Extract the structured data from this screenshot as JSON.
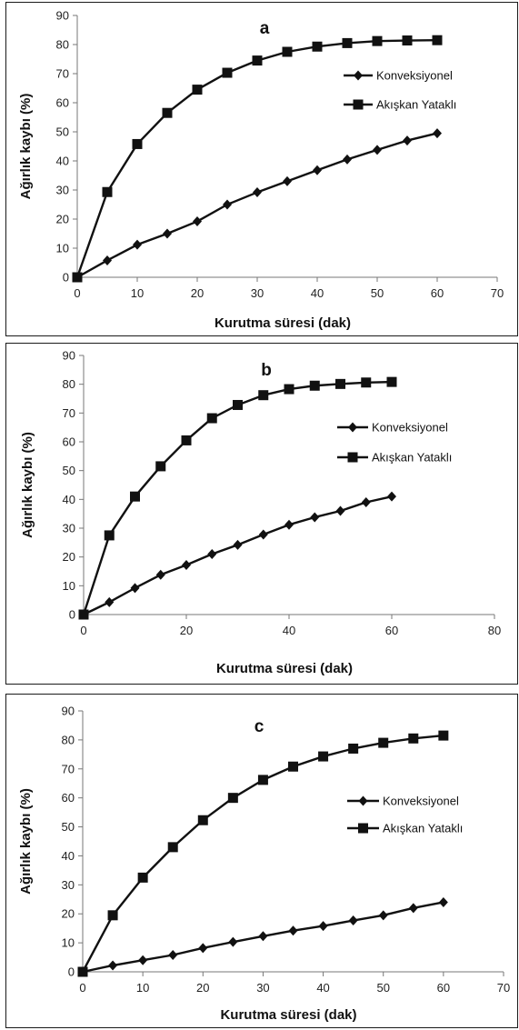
{
  "chart_data": [
    {
      "type": "line",
      "panel_label": "a",
      "xlabel": "Kurutma süresi (dak)",
      "ylabel": "Ağırlık kaybı (%)",
      "xlim": [
        0,
        70
      ],
      "ylim": [
        0,
        90
      ],
      "xticks": [
        0,
        10,
        20,
        30,
        40,
        50,
        60,
        70
      ],
      "yticks": [
        0,
        10,
        20,
        30,
        40,
        50,
        60,
        70,
        80,
        90
      ],
      "grid": false,
      "legend_position": "right",
      "x": [
        0,
        5,
        10,
        15,
        20,
        25,
        30,
        35,
        40,
        45,
        50,
        55,
        60
      ],
      "series": [
        {
          "name": "Konveksiyonel",
          "marker": "diamond",
          "values": [
            0,
            5.8,
            11.2,
            15,
            19.2,
            25,
            29.2,
            33,
            36.8,
            40.5,
            43.8,
            47,
            49.5
          ]
        },
        {
          "name": "Akışkan Yataklı",
          "marker": "square",
          "values": [
            0,
            29.3,
            45.8,
            56.5,
            64.5,
            70.3,
            74.5,
            77.5,
            79.3,
            80.5,
            81.2,
            81.4,
            81.5
          ]
        }
      ]
    },
    {
      "type": "line",
      "panel_label": "b",
      "xlabel": "Kurutma süresi (dak)",
      "ylabel": "Ağırlık  kaybı (%)",
      "xlim": [
        0,
        80
      ],
      "ylim": [
        0,
        90
      ],
      "xticks": [
        0,
        20,
        40,
        60,
        80
      ],
      "yticks": [
        0,
        10,
        20,
        30,
        40,
        50,
        60,
        70,
        80,
        90
      ],
      "grid": false,
      "legend_position": "right",
      "x": [
        0,
        5,
        10,
        15,
        20,
        25,
        30,
        35,
        40,
        45,
        50,
        55,
        60
      ],
      "series": [
        {
          "name": "Konveksiyonel",
          "marker": "diamond",
          "values": [
            0,
            4.3,
            9.2,
            13.8,
            17.2,
            21,
            24.2,
            27.8,
            31.2,
            33.8,
            36,
            39,
            41
          ]
        },
        {
          "name": "Akışkan Yataklı",
          "marker": "square",
          "values": [
            0,
            27.5,
            41,
            51.5,
            60.5,
            68.2,
            72.8,
            76.2,
            78.3,
            79.5,
            80.1,
            80.6,
            80.8
          ]
        }
      ]
    },
    {
      "type": "line",
      "panel_label": "c",
      "xlabel": "Kurutma süresi (dak)",
      "ylabel": "Ağırlık kaybı (%)",
      "xlim": [
        0,
        70
      ],
      "ylim": [
        0,
        90
      ],
      "xticks": [
        0,
        10,
        20,
        30,
        40,
        50,
        60,
        70
      ],
      "yticks": [
        0,
        10,
        20,
        30,
        40,
        50,
        60,
        70,
        80,
        90
      ],
      "grid": false,
      "legend_position": "right",
      "x": [
        0,
        5,
        10,
        15,
        20,
        25,
        30,
        35,
        40,
        45,
        50,
        55,
        60
      ],
      "series": [
        {
          "name": "Konveksiyonel",
          "marker": "diamond",
          "values": [
            0,
            2.2,
            4,
            5.8,
            8.2,
            10.3,
            12.3,
            14.2,
            15.8,
            17.7,
            19.5,
            22,
            24
          ]
        },
        {
          "name": "Akışkan Yataklı",
          "marker": "square",
          "values": [
            0,
            19.5,
            32.5,
            43,
            52.3,
            60,
            66.2,
            70.8,
            74.3,
            77,
            79,
            80.5,
            81.5
          ]
        }
      ]
    }
  ]
}
